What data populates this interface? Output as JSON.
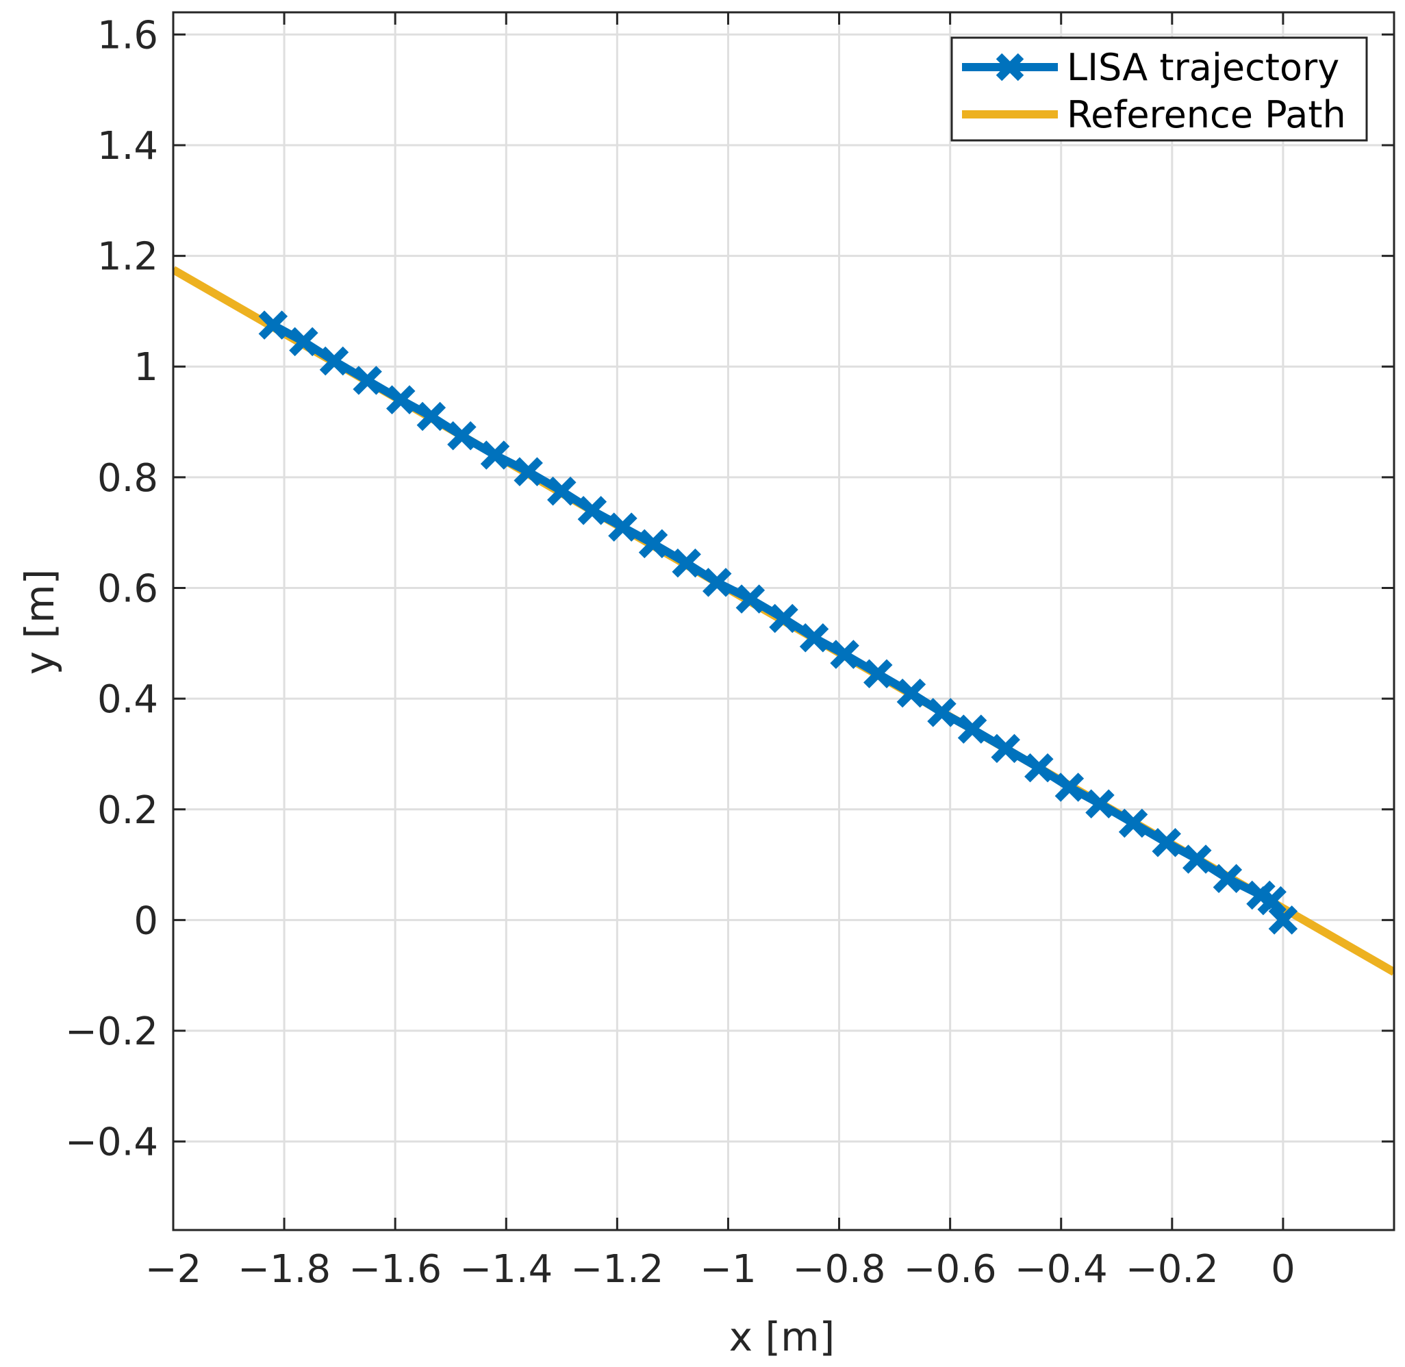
{
  "chart_data": {
    "type": "line",
    "title": "",
    "xlabel": "x [m]",
    "ylabel": "y [m]",
    "xlim": [
      -2,
      0.2
    ],
    "ylim": [
      -0.56,
      1.64
    ],
    "xticks": [
      -2,
      -1.8,
      -1.6,
      -1.4,
      -1.2,
      -1,
      -0.8,
      -0.6,
      -0.4,
      -0.2,
      0
    ],
    "xtick_labels": [
      "−2",
      "−1.8",
      "−1.6",
      "−1.4",
      "−1.2",
      "−1",
      "−0.8",
      "−0.6",
      "−0.4",
      "−0.2",
      "0"
    ],
    "yticks": [
      -0.4,
      -0.2,
      0,
      0.2,
      0.4,
      0.6,
      0.8,
      1,
      1.2,
      1.4,
      1.6
    ],
    "ytick_labels": [
      "−0.4",
      "−0.2",
      "0",
      "0.2",
      "0.4",
      "0.6",
      "0.8",
      "1",
      "1.2",
      "1.4",
      "1.6"
    ],
    "grid": true,
    "legend_position": "top-right",
    "series": [
      {
        "name": "LISA trajectory",
        "color": "#0072BD",
        "marker": "x",
        "x": [
          -1.82,
          -1.765,
          -1.71,
          -1.65,
          -1.59,
          -1.535,
          -1.48,
          -1.42,
          -1.36,
          -1.3,
          -1.245,
          -1.19,
          -1.135,
          -1.075,
          -1.02,
          -0.96,
          -0.9,
          -0.845,
          -0.79,
          -0.73,
          -0.67,
          -0.615,
          -0.56,
          -0.5,
          -0.44,
          -0.385,
          -0.33,
          -0.27,
          -0.21,
          -0.155,
          -0.1,
          -0.04,
          -0.02,
          0.0
        ],
        "y": [
          1.075,
          1.045,
          1.01,
          0.975,
          0.94,
          0.91,
          0.875,
          0.84,
          0.81,
          0.775,
          0.74,
          0.71,
          0.68,
          0.645,
          0.61,
          0.58,
          0.545,
          0.51,
          0.48,
          0.445,
          0.41,
          0.375,
          0.345,
          0.31,
          0.275,
          0.24,
          0.21,
          0.175,
          0.14,
          0.11,
          0.075,
          0.045,
          0.035,
          0.0
        ]
      },
      {
        "name": "Reference Path",
        "color": "#EDB120",
        "x": [
          -2,
          0.2
        ],
        "y": [
          1.175,
          -0.094
        ]
      }
    ]
  }
}
